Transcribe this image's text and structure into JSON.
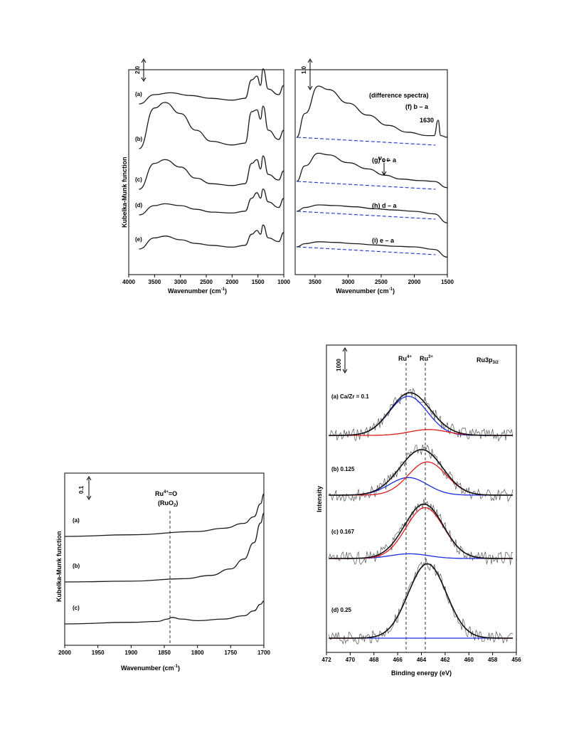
{
  "chart_data": [
    {
      "type": "line",
      "xlabel": "Wavenumber (cm",
      "xlabel_sup": "-1",
      "xlabel_end": ")",
      "ylabel": "Kubelka-Munk function",
      "scale_bar": "2.0",
      "xlim": [
        4000,
        1000
      ],
      "x_ticks": [
        "4000",
        "3500",
        "3000",
        "2500",
        "2000",
        "1500",
        "1000"
      ],
      "series": [
        {
          "name": "(a)",
          "values": [
            [
              3800,
              0.0
            ],
            [
              3500,
              0.5
            ],
            [
              3200,
              0.6
            ],
            [
              2800,
              0.45
            ],
            [
              2400,
              0.3
            ],
            [
              2000,
              0.2
            ],
            [
              1750,
              0.3
            ],
            [
              1620,
              1.3
            ],
            [
              1520,
              1.5
            ],
            [
              1450,
              1.0
            ],
            [
              1400,
              1.9
            ],
            [
              1300,
              0.8
            ],
            [
              1100,
              0.5
            ],
            [
              1000,
              1.0
            ]
          ]
        },
        {
          "name": "(b)",
          "values": [
            [
              3800,
              0.0
            ],
            [
              3500,
              2.2
            ],
            [
              3300,
              2.5
            ],
            [
              3000,
              1.9
            ],
            [
              2700,
              1.0
            ],
            [
              2400,
              0.4
            ],
            [
              2000,
              0.2
            ],
            [
              1750,
              0.3
            ],
            [
              1620,
              2.0
            ],
            [
              1520,
              2.1
            ],
            [
              1450,
              1.6
            ],
            [
              1400,
              2.3
            ],
            [
              1300,
              1.0
            ],
            [
              1100,
              0.5
            ],
            [
              1000,
              1.0
            ]
          ]
        },
        {
          "name": "(c)",
          "values": [
            [
              3800,
              0.0
            ],
            [
              3500,
              1.4
            ],
            [
              3300,
              1.6
            ],
            [
              3000,
              1.2
            ],
            [
              2700,
              0.6
            ],
            [
              2400,
              0.3
            ],
            [
              2000,
              0.2
            ],
            [
              1750,
              0.3
            ],
            [
              1620,
              1.4
            ],
            [
              1520,
              1.6
            ],
            [
              1450,
              1.1
            ],
            [
              1400,
              1.8
            ],
            [
              1300,
              0.8
            ],
            [
              1100,
              0.5
            ],
            [
              1000,
              1.0
            ]
          ]
        },
        {
          "name": "(d)",
          "values": [
            [
              3800,
              0.0
            ],
            [
              3500,
              0.5
            ],
            [
              3300,
              0.6
            ],
            [
              3000,
              0.5
            ],
            [
              2700,
              0.3
            ],
            [
              2400,
              0.15
            ],
            [
              2000,
              0.1
            ],
            [
              1750,
              0.2
            ],
            [
              1620,
              0.9
            ],
            [
              1520,
              1.2
            ],
            [
              1450,
              0.9
            ],
            [
              1400,
              1.4
            ],
            [
              1300,
              0.7
            ],
            [
              1100,
              0.4
            ],
            [
              1000,
              0.9
            ]
          ]
        },
        {
          "name": "(e)",
          "values": [
            [
              3800,
              0.0
            ],
            [
              3500,
              0.6
            ],
            [
              3300,
              0.7
            ],
            [
              3000,
              0.5
            ],
            [
              2700,
              0.3
            ],
            [
              2400,
              0.2
            ],
            [
              2000,
              0.1
            ],
            [
              1750,
              0.2
            ],
            [
              1620,
              0.8
            ],
            [
              1520,
              1.0
            ],
            [
              1450,
              0.8
            ],
            [
              1400,
              1.3
            ],
            [
              1300,
              0.6
            ],
            [
              1100,
              0.4
            ],
            [
              1000,
              0.9
            ]
          ]
        }
      ]
    },
    {
      "type": "line",
      "xlabel": "Wavenumber (cm",
      "xlabel_sup": "-1",
      "xlabel_end": ")",
      "scale_bar": "1.0",
      "header": "(difference spectra)",
      "xlim": [
        3800,
        1500
      ],
      "x_ticks": [
        "3500",
        "3000",
        "2500",
        "2000",
        "1500"
      ],
      "annotations": {
        "peak": "1630",
        "vod": "ν",
        "vod_sub": "O-D"
      },
      "series": [
        {
          "name": "(f) b – a",
          "values": [
            [
              3780,
              0.0
            ],
            [
              3650,
              1.4
            ],
            [
              3450,
              3.0
            ],
            [
              3300,
              2.8
            ],
            [
              3000,
              2.0
            ],
            [
              2700,
              1.3
            ],
            [
              2400,
              0.7
            ],
            [
              2100,
              0.3
            ],
            [
              1800,
              0.1
            ],
            [
              1700,
              0.1
            ],
            [
              1640,
              1.0
            ],
            [
              1600,
              0.1
            ],
            [
              1500,
              0.0
            ]
          ]
        },
        {
          "name": "(g) c – a",
          "values": [
            [
              3780,
              0.0
            ],
            [
              3650,
              1.0
            ],
            [
              3450,
              1.8
            ],
            [
              3300,
              1.7
            ],
            [
              3000,
              1.2
            ],
            [
              2700,
              0.8
            ],
            [
              2450,
              0.4
            ],
            [
              2200,
              0.15
            ],
            [
              1900,
              0.05
            ],
            [
              1700,
              0.0
            ],
            [
              1500,
              -0.4
            ]
          ]
        },
        {
          "name": "(h) d – a",
          "values": [
            [
              3780,
              0.0
            ],
            [
              3650,
              0.3
            ],
            [
              3450,
              0.5
            ],
            [
              3200,
              0.45
            ],
            [
              2900,
              0.35
            ],
            [
              2600,
              0.2
            ],
            [
              2300,
              0.1
            ],
            [
              2000,
              0.0
            ],
            [
              1700,
              -0.2
            ],
            [
              1500,
              -0.9
            ]
          ]
        },
        {
          "name": "(i) e – a",
          "values": [
            [
              3780,
              0.0
            ],
            [
              3650,
              0.25
            ],
            [
              3450,
              0.4
            ],
            [
              3200,
              0.35
            ],
            [
              2900,
              0.25
            ],
            [
              2600,
              0.15
            ],
            [
              2300,
              0.05
            ],
            [
              2000,
              0.0
            ],
            [
              1700,
              -0.2
            ],
            [
              1500,
              -0.8
            ]
          ]
        }
      ]
    },
    {
      "type": "line",
      "xlabel": "Wavenumber (cm",
      "xlabel_sup": "-1",
      "xlabel_end": ")",
      "ylabel": "Kubelka-Munk function",
      "scale_bar": "0.1",
      "xlim": [
        2000,
        1700
      ],
      "x_ticks": [
        "2000",
        "1950",
        "1900",
        "1850",
        "1800",
        "1750",
        "1700"
      ],
      "marker": {
        "x": 1838,
        "label": "Ru",
        "label_sup": "4+",
        "label_end": "=O",
        "label2": "(RuO",
        "label2_sub": "2",
        "label2_end": ")"
      },
      "series": [
        {
          "name": "(a)",
          "values": [
            [
              2000,
              0.0
            ],
            [
              1900,
              0.01
            ],
            [
              1800,
              0.03
            ],
            [
              1760,
              0.05
            ],
            [
              1730,
              0.08
            ],
            [
              1715,
              0.12
            ],
            [
              1705,
              0.2
            ],
            [
              1700,
              0.26
            ]
          ]
        },
        {
          "name": "(b)",
          "values": [
            [
              2000,
              0.0
            ],
            [
              1900,
              0.005
            ],
            [
              1820,
              0.02
            ],
            [
              1780,
              0.04
            ],
            [
              1750,
              0.08
            ],
            [
              1730,
              0.14
            ],
            [
              1715,
              0.24
            ],
            [
              1705,
              0.36
            ],
            [
              1700,
              0.42
            ]
          ]
        },
        {
          "name": "(c)",
          "values": [
            [
              2000,
              0.0
            ],
            [
              1900,
              0.01
            ],
            [
              1860,
              0.015
            ],
            [
              1845,
              0.03
            ],
            [
              1838,
              0.04
            ],
            [
              1825,
              0.03
            ],
            [
              1800,
              0.02
            ],
            [
              1760,
              0.03
            ],
            [
              1730,
              0.05
            ],
            [
              1715,
              0.08
            ],
            [
              1705,
              0.12
            ],
            [
              1700,
              0.14
            ]
          ]
        }
      ]
    },
    {
      "type": "line",
      "xlabel": "Binding energy (eV)",
      "ylabel": "Intensity",
      "scale_bar": "1000",
      "title": "Ru3p",
      "title_sub": "3/2",
      "xlim": [
        472,
        456
      ],
      "x_ticks": [
        "472",
        "470",
        "468",
        "466",
        "464",
        "462",
        "460",
        "458",
        "456"
      ],
      "markers": [
        {
          "x": 465.2,
          "label": "Ru",
          "label_sup": "4+"
        },
        {
          "x": 463.4,
          "label": "Ru",
          "label_sup": "3+"
        }
      ],
      "panels": [
        {
          "name": "(a) Ca/Zr = 0.1",
          "ru4_amp": 1.0,
          "ru4_center": 465.1,
          "ru3_amp": 0.15,
          "ru3_center": 463.4
        },
        {
          "name": "(b) 0.125",
          "ru4_amp": 0.45,
          "ru4_center": 465.1,
          "ru3_amp": 0.85,
          "ru3_center": 463.5
        },
        {
          "name": "(c) 0.167",
          "ru4_amp": 0.12,
          "ru4_center": 465.0,
          "ru3_amp": 1.3,
          "ru3_center": 463.7
        },
        {
          "name": "(d) 0.25",
          "ru4_amp": 0.0,
          "ru4_center": 465.0,
          "ru3_amp": 1.9,
          "ru3_center": 463.5
        }
      ]
    }
  ]
}
